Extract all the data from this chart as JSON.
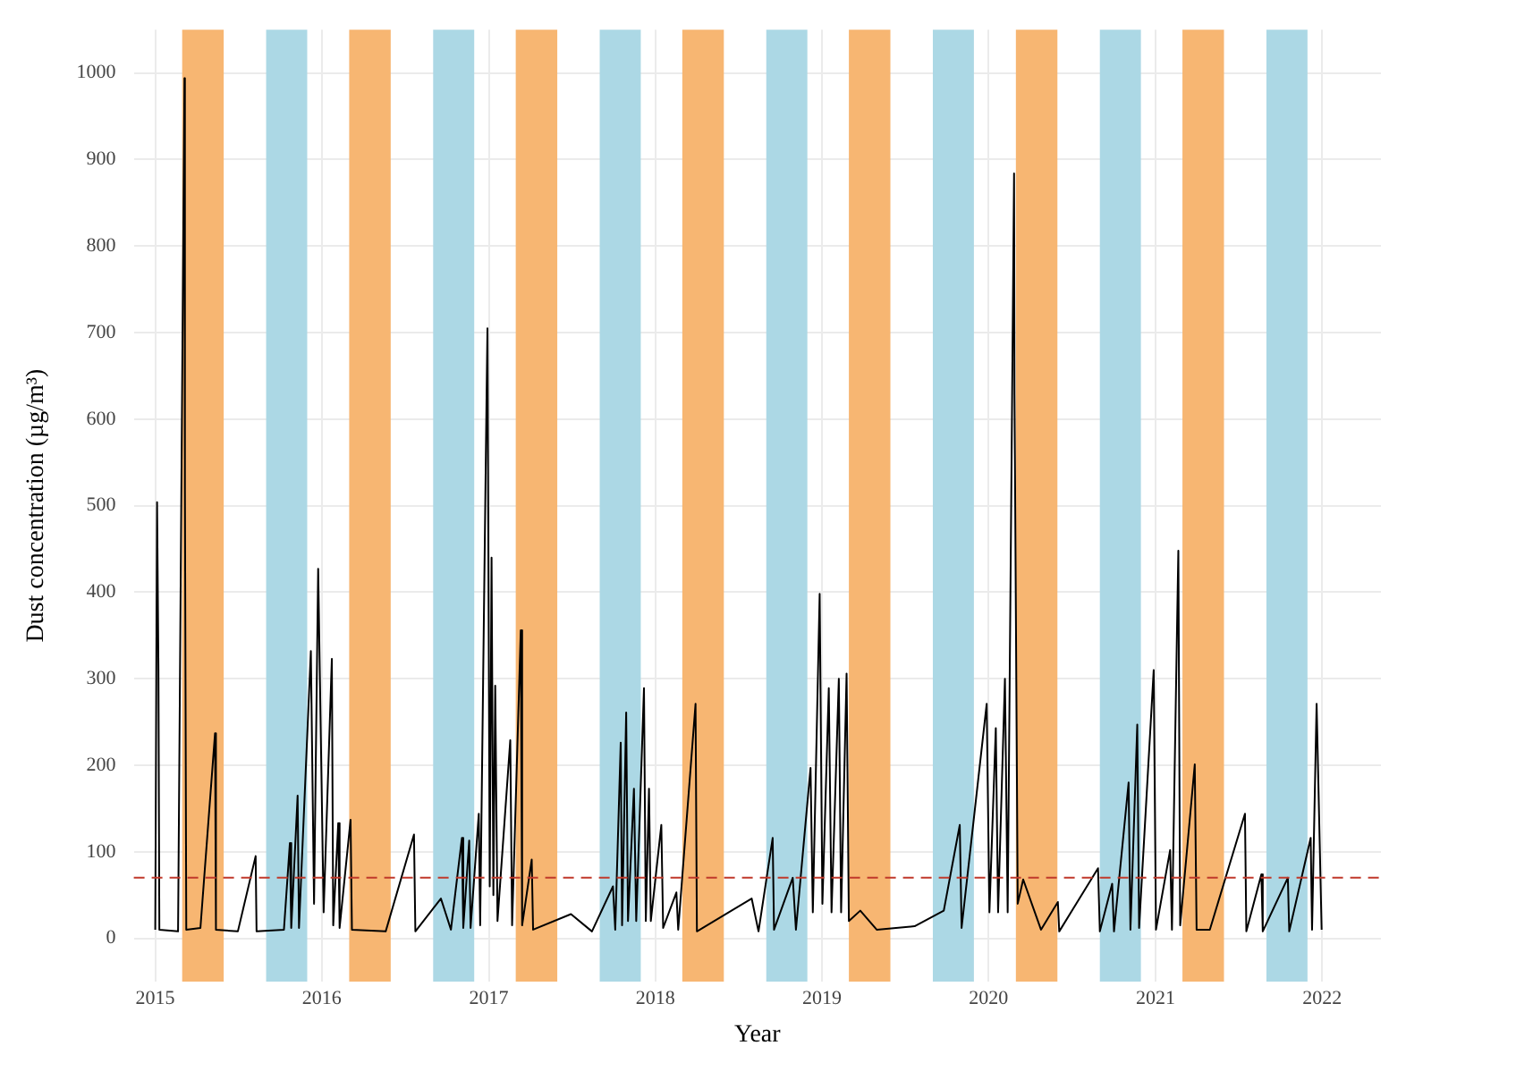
{
  "chart_data": {
    "type": "line",
    "xlabel": "Year",
    "ylabel": "Dust concentration (µg/m³)",
    "x": [
      "2015-01-01",
      "2015-01-05",
      "2015-01-08",
      "2015-01-10",
      "2015-02-20",
      "2015-03-06",
      "2015-03-07",
      "2015-03-10",
      "2015-04-10",
      "2015-05-12",
      "2015-05-14",
      "2015-07-01",
      "2015-08-09",
      "2015-08-11",
      "2015-10-10",
      "2015-10-23",
      "2015-10-26",
      "2015-11-09",
      "2015-11-12",
      "2015-12-08",
      "2015-12-15",
      "2015-12-24",
      "2016-01-05",
      "2016-01-23",
      "2016-01-26",
      "2016-02-06",
      "2016-02-09",
      "2016-03-04",
      "2016-03-07",
      "2016-05-20",
      "2016-07-21",
      "2016-07-24",
      "2016-09-18",
      "2016-10-10",
      "2016-11-03",
      "2016-11-06",
      "2016-11-19",
      "2016-11-22",
      "2016-12-10",
      "2016-12-13",
      "2016-12-27",
      "2016-12-29",
      "2017-01-03",
      "2017-01-07",
      "2017-01-11",
      "2017-01-15",
      "2017-01-20",
      "2017-02-17",
      "2017-02-21",
      "2017-03-12",
      "2017-03-15",
      "2017-04-05",
      "2017-04-08",
      "2017-06-30",
      "2017-08-15",
      "2017-09-30",
      "2017-10-05",
      "2017-10-17",
      "2017-10-20",
      "2017-10-29",
      "2017-11-02",
      "2017-11-15",
      "2017-11-20",
      "2017-12-07",
      "2017-12-11",
      "2017-12-18",
      "2017-12-22",
      "2018-01-14",
      "2018-01-18",
      "2018-02-16",
      "2018-02-20",
      "2018-03-30",
      "2018-04-02",
      "2018-07-31",
      "2018-08-15",
      "2018-09-15",
      "2018-09-18",
      "2018-10-29",
      "2018-11-05",
      "2018-12-07",
      "2018-12-12",
      "2018-12-27",
      "2019-01-02",
      "2019-01-16",
      "2019-01-22",
      "2019-02-07",
      "2019-02-12",
      "2019-02-24",
      "2019-03-01",
      "2019-03-26",
      "2019-05-01",
      "2019-07-23",
      "2019-09-25",
      "2019-10-30",
      "2019-11-03",
      "2019-12-28",
      "2020-01-03",
      "2020-01-17",
      "2020-01-22",
      "2020-02-06",
      "2020-02-12",
      "2020-02-26",
      "2020-02-27",
      "2020-03-05",
      "2020-03-17",
      "2020-04-25",
      "2020-06-01",
      "2020-06-04",
      "2020-08-28",
      "2020-09-01",
      "2020-09-28",
      "2020-10-02",
      "2020-11-03",
      "2020-11-07",
      "2020-11-22",
      "2020-11-26",
      "2020-12-28",
      "2021-01-02",
      "2021-02-02",
      "2021-02-06",
      "2021-02-20",
      "2021-02-24",
      "2021-03-28",
      "2021-04-01",
      "2021-04-30",
      "2021-07-16",
      "2021-07-19",
      "2021-08-21",
      "2021-08-24",
      "2021-10-18",
      "2021-10-21",
      "2021-12-07",
      "2021-12-10",
      "2021-12-20",
      "2021-12-31"
    ],
    "series": [
      {
        "color": "#000000",
        "values": [
          10,
          504,
          310,
          10,
          8,
          994,
          520,
          10,
          12,
          237,
          10,
          8,
          95,
          8,
          10,
          110,
          12,
          165,
          12,
          332,
          40,
          427,
          30,
          323,
          15,
          133,
          12,
          137,
          10,
          8,
          120,
          8,
          46,
          10,
          116,
          12,
          113,
          12,
          144,
          15,
          624,
          705,
          60,
          440,
          50,
          292,
          20,
          229,
          15,
          356,
          15,
          91,
          10,
          28,
          8,
          60,
          10,
          226,
          15,
          261,
          20,
          173,
          20,
          289,
          20,
          173,
          20,
          131,
          12,
          53,
          10,
          271,
          8,
          46,
          8,
          116,
          10,
          70,
          10,
          197,
          30,
          398,
          40,
          289,
          30,
          300,
          30,
          306,
          20,
          32,
          10,
          14,
          32,
          131,
          12,
          271,
          30,
          243,
          30,
          300,
          30,
          884,
          628,
          40,
          68,
          10,
          42,
          8,
          81,
          8,
          63,
          8,
          180,
          10,
          247,
          12,
          310,
          10,
          102,
          10,
          448,
          15,
          201,
          10,
          10,
          144,
          8,
          74,
          8,
          70,
          8,
          116,
          10,
          271,
          10
        ]
      }
    ],
    "xlim": [
      "2014-11-15",
      "2022-05-10"
    ],
    "xticks": [
      "2015",
      "2016",
      "2017",
      "2018",
      "2019",
      "2020",
      "2021",
      "2022"
    ],
    "ylim": [
      -50,
      1050
    ],
    "yticks": [
      0,
      100,
      200,
      300,
      400,
      500,
      600,
      700,
      800,
      900,
      1000
    ],
    "grid": true,
    "legend": false,
    "marker": "none",
    "line_style": "solid",
    "ref_lines": [
      {
        "axis": "y",
        "value": 70,
        "color": "#c0392b",
        "line_style": "dashed"
      }
    ],
    "bands": [
      {
        "axis": "x",
        "from": "2015-03-01",
        "to": "2015-05-31",
        "color": "#f7b672"
      },
      {
        "axis": "x",
        "from": "2015-09-01",
        "to": "2015-11-30",
        "color": "#acd8e5"
      },
      {
        "axis": "x",
        "from": "2016-03-01",
        "to": "2016-05-31",
        "color": "#f7b672"
      },
      {
        "axis": "x",
        "from": "2016-09-01",
        "to": "2016-11-30",
        "color": "#acd8e5"
      },
      {
        "axis": "x",
        "from": "2017-03-01",
        "to": "2017-05-31",
        "color": "#f7b672"
      },
      {
        "axis": "x",
        "from": "2017-09-01",
        "to": "2017-11-30",
        "color": "#acd8e5"
      },
      {
        "axis": "x",
        "from": "2018-03-01",
        "to": "2018-05-31",
        "color": "#f7b672"
      },
      {
        "axis": "x",
        "from": "2018-09-01",
        "to": "2018-11-30",
        "color": "#acd8e5"
      },
      {
        "axis": "x",
        "from": "2019-03-01",
        "to": "2019-05-31",
        "color": "#f7b672"
      },
      {
        "axis": "x",
        "from": "2019-09-01",
        "to": "2019-11-30",
        "color": "#acd8e5"
      },
      {
        "axis": "x",
        "from": "2020-03-01",
        "to": "2020-05-31",
        "color": "#f7b672"
      },
      {
        "axis": "x",
        "from": "2020-09-01",
        "to": "2020-11-30",
        "color": "#acd8e5"
      },
      {
        "axis": "x",
        "from": "2021-03-01",
        "to": "2021-05-31",
        "color": "#f7b672"
      },
      {
        "axis": "x",
        "from": "2021-09-01",
        "to": "2021-11-30",
        "color": "#acd8e5"
      }
    ]
  }
}
